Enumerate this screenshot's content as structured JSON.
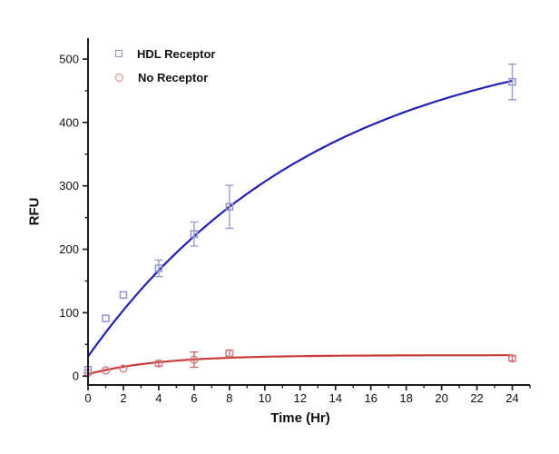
{
  "chart_data": {
    "type": "scatter",
    "title": "",
    "xlabel": "Time (Hr)",
    "ylabel": "RFU",
    "axes": {
      "xlim": [
        0,
        25
      ],
      "ylim": [
        -14,
        533
      ],
      "x_major_ticks": [
        0,
        2,
        4,
        6,
        8,
        10,
        12,
        14,
        16,
        18,
        20,
        22,
        24
      ],
      "x_minor_ticks": [
        1,
        3,
        5,
        7,
        9,
        11,
        13,
        15,
        17,
        19,
        21,
        23,
        25
      ],
      "y_major_ticks": [
        0,
        100,
        200,
        300,
        400,
        500
      ],
      "y_minor_ticks": [
        50,
        150,
        250,
        350,
        450
      ],
      "grid": false,
      "axis_color": "#1c1c1c",
      "tick_label_color": "#111111"
    },
    "legend_position": "top-left-inside",
    "series": [
      {
        "name": "HDL Receptor",
        "marker": "square",
        "marker_color": "#9095cc",
        "line_color": "#2121b0",
        "error_color": "#9aa0cc",
        "points": [
          {
            "x": 0,
            "y": 10
          },
          {
            "x": 1,
            "y": 91
          },
          {
            "x": 2,
            "y": 128
          },
          {
            "x": 4,
            "y": 170,
            "err": 13
          },
          {
            "x": 6,
            "y": 224,
            "err": 19
          },
          {
            "x": 8,
            "y": 267,
            "err": 34
          },
          {
            "x": 24,
            "y": 464,
            "err": 28
          }
        ],
        "fit_curve": {
          "model": "y0 + A*(1-exp(-t/tau))",
          "y0": 31,
          "A": 519,
          "tau": 13.2,
          "t_start": 0,
          "t_end": 24
        }
      },
      {
        "name": "No Receptor",
        "marker": "circle",
        "marker_color": "#d08585",
        "line_color": "#c93b3b",
        "error_color": "#cd6f6f",
        "points": [
          {
            "x": 0,
            "y": 5
          },
          {
            "x": 1,
            "y": 9
          },
          {
            "x": 2,
            "y": 12
          },
          {
            "x": 4,
            "y": 20,
            "err": 4
          },
          {
            "x": 6,
            "y": 26,
            "err": 12
          },
          {
            "x": 8,
            "y": 36,
            "err": 5
          },
          {
            "x": 24,
            "y": 28,
            "err": 4
          }
        ],
        "fit_curve": {
          "model": "y0 + A*(1-exp(-t/tau))",
          "y0": 3,
          "A": 30,
          "tau": 4,
          "t_start": 0,
          "t_end": 24
        }
      }
    ]
  }
}
